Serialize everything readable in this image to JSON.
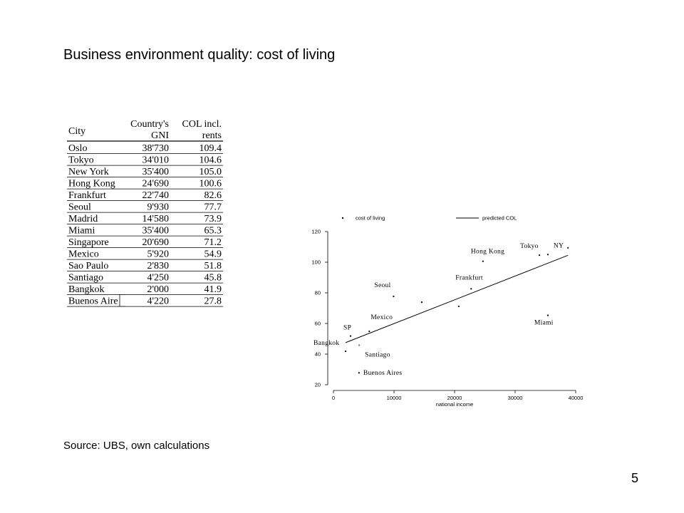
{
  "slide": {
    "title": "Business environment quality: cost of living",
    "source": "Source: UBS, own calculations",
    "page_number": "5"
  },
  "table": {
    "headers": {
      "city": "City",
      "gni_line1": "Country's",
      "gni_line2": "GNI",
      "col_line1": "COL incl.",
      "col_line2": "rents"
    },
    "highlight_color": "#2b3ea6",
    "rows": [
      {
        "city": "Oslo",
        "gni": "38'730",
        "col": "109.4"
      },
      {
        "city": "Tokyo",
        "gni": "34'010",
        "col": "104.6"
      },
      {
        "city": "New York",
        "gni": "35'400",
        "col": "105.0"
      },
      {
        "city": "Hong Kong",
        "gni": "24'690",
        "col": "100.6"
      },
      {
        "city": "Frankfurt",
        "gni": "22'740",
        "col": "82.6"
      },
      {
        "city": "Seoul",
        "gni": "9'930",
        "col": "77.7"
      },
      {
        "city": "Madrid",
        "gni": "14'580",
        "col": "73.9"
      },
      {
        "city": "Miami",
        "gni": "35'400",
        "col": "65.3"
      },
      {
        "city": "Singapore",
        "gni": "20'690",
        "col": "71.2"
      },
      {
        "city": "Mexico",
        "gni": "5'920",
        "col": "54.9"
      },
      {
        "city": "Sao Paulo",
        "gni": "2'830",
        "col": "51.8"
      },
      {
        "city": "Santiago",
        "gni": "4'250",
        "col": "45.8",
        "highlight": true
      },
      {
        "city": "Bangkok",
        "gni": "2'000",
        "col": "41.9"
      },
      {
        "city": "Buenos Aires",
        "gni": "4'220",
        "col": "27.8"
      }
    ]
  },
  "chart_data": {
    "type": "scatter",
    "xlabel": "national income",
    "ylabel": "",
    "xlim": [
      0,
      40000
    ],
    "ylim": [
      20,
      120
    ],
    "x_ticks": [
      0,
      10000,
      20000,
      30000,
      40000
    ],
    "x_tick_labels": [
      "0",
      "10000",
      "20000",
      "30000",
      "40000"
    ],
    "y_ticks": [
      20,
      40,
      60,
      80,
      100,
      120
    ],
    "y_tick_labels": [
      "20",
      "40",
      "60",
      "80",
      "100",
      "120"
    ],
    "legend": {
      "position": "top",
      "entries": [
        "cost of living",
        "predicted COL"
      ]
    },
    "points": [
      {
        "x": 38730,
        "y": 109.4,
        "label": ""
      },
      {
        "x": 34010,
        "y": 104.6,
        "label": "Tokyo"
      },
      {
        "x": 35400,
        "y": 105.0,
        "label": "NY"
      },
      {
        "x": 24690,
        "y": 100.6,
        "label": "Hong Kong"
      },
      {
        "x": 22740,
        "y": 82.6,
        "label": "Frankfurt"
      },
      {
        "x": 9930,
        "y": 77.7,
        "label": "Seoul"
      },
      {
        "x": 14580,
        "y": 73.9,
        "label": ""
      },
      {
        "x": 35400,
        "y": 65.3,
        "label": "Miami"
      },
      {
        "x": 20690,
        "y": 71.2,
        "label": ""
      },
      {
        "x": 5920,
        "y": 54.9,
        "label": "Mexico"
      },
      {
        "x": 2830,
        "y": 51.8,
        "label": "SP"
      },
      {
        "x": 4250,
        "y": 45.8,
        "label": "Santiago",
        "highlight": true
      },
      {
        "x": 2000,
        "y": 41.9,
        "label": "Bangkok"
      },
      {
        "x": 4220,
        "y": 27.8,
        "label": "Buenos Aires"
      }
    ],
    "fit_line": {
      "name": "predicted COL",
      "points": [
        [
          2000,
          47.5
        ],
        [
          38730,
          104.5
        ]
      ]
    },
    "highlight_color": "#3e6fd1"
  }
}
